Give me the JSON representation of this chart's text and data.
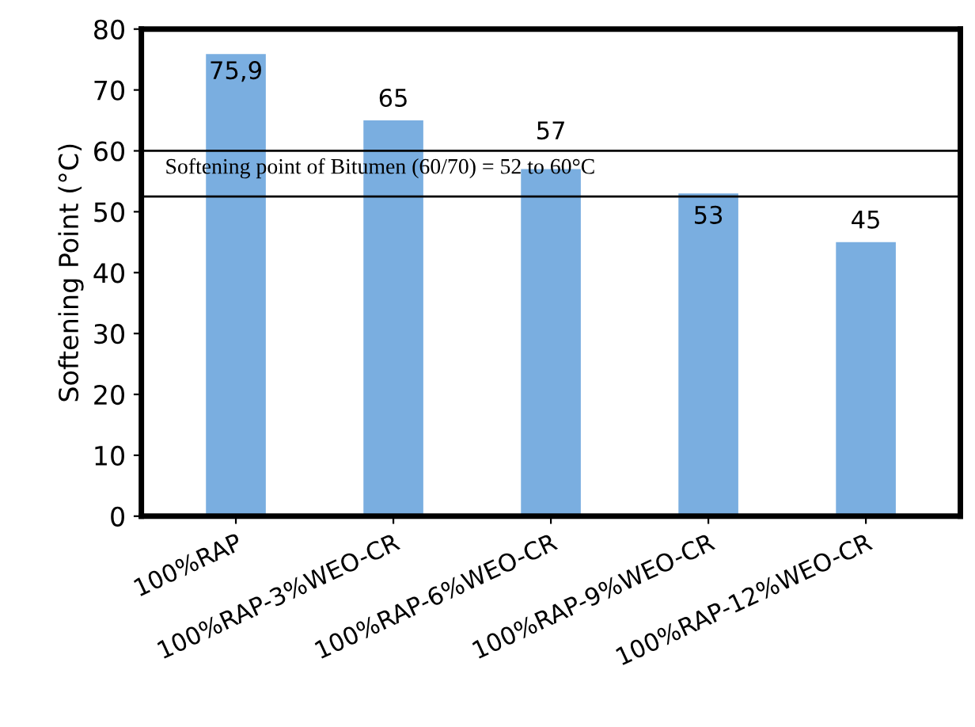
{
  "chart_data": {
    "type": "bar",
    "ylabel": "Softening Point (°C)",
    "categories": [
      "100%RAP",
      "100%RAP-3%WEO-CR",
      "100%RAP-6%WEO-CR",
      "100%RAP-9%WEO-CR",
      "100%RAP-12%WEO-CR"
    ],
    "values": [
      75.9,
      65,
      57,
      53,
      45
    ],
    "value_labels": [
      "75,9",
      "65",
      "57",
      "53",
      "45"
    ],
    "color": "#7aaee0",
    "ylim": [
      0,
      80
    ],
    "yticks": [
      0,
      10,
      20,
      30,
      40,
      50,
      60,
      70,
      80
    ],
    "ref_lines": [
      {
        "axis": "y",
        "value": 60,
        "label": "Softening point of Bitumen (60/70) = 52 to 60°C",
        "color": "#000000"
      },
      {
        "axis": "y",
        "value": 52.5,
        "color": "#000000"
      }
    ],
    "grid": false
  }
}
